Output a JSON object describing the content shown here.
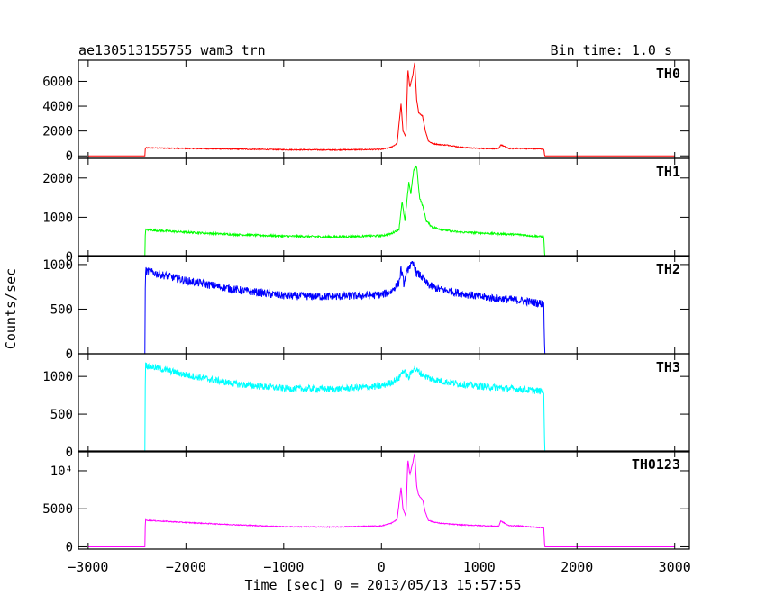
{
  "chart_data": {
    "type": "line",
    "title": "ae130513155755_wam3_trn",
    "subtitle": "Bin time: 1.0 s",
    "xlabel": "Time [sec] 0 = 2013/05/13 15:57:55",
    "ylabel": "Counts/sec",
    "xlim": [
      -3100,
      3150
    ],
    "x_ticks": [
      -3000,
      -2000,
      -1000,
      0,
      1000,
      2000,
      3000
    ],
    "x_tick_labels": [
      "−3000",
      "−2000",
      "−1000",
      "0",
      "1000",
      "2000",
      "3000"
    ],
    "panels": [
      {
        "name": "TH0",
        "color": "#ff0000",
        "ylim": [
          -200,
          7700
        ],
        "y_ticks": [
          0,
          2000,
          4000,
          6000
        ],
        "y_tick_labels": [
          "0",
          "2000",
          "4000",
          "6000"
        ],
        "noise": 40,
        "x": [
          -3000,
          -2420,
          -2415,
          -2000,
          -1500,
          -1000,
          -500,
          0,
          100,
          160,
          200,
          220,
          250,
          270,
          290,
          320,
          340,
          360,
          380,
          420,
          450,
          480,
          520,
          600,
          700,
          800,
          1000,
          1200,
          1220,
          1300,
          1400,
          1500,
          1660,
          1670,
          3000
        ],
        "y": [
          0,
          0,
          650,
          600,
          550,
          500,
          480,
          520,
          700,
          1000,
          4200,
          2000,
          1500,
          7000,
          5500,
          6500,
          7500,
          4500,
          3500,
          3200,
          2000,
          1200,
          1000,
          900,
          850,
          700,
          600,
          580,
          900,
          600,
          600,
          580,
          550,
          0,
          0
        ]
      },
      {
        "name": "TH1",
        "color": "#00ff00",
        "ylim": [
          0,
          2500
        ],
        "y_ticks": [
          0,
          1000,
          2000
        ],
        "y_tick_labels": [
          "0",
          "1000",
          "2000"
        ],
        "noise": 25,
        "x": [
          -3000,
          -2420,
          -2415,
          -2000,
          -1500,
          -1000,
          -500,
          0,
          100,
          180,
          210,
          240,
          280,
          300,
          330,
          360,
          390,
          420,
          460,
          520,
          600,
          700,
          800,
          1000,
          1200,
          1400,
          1660,
          1670,
          3000
        ],
        "y": [
          0,
          0,
          680,
          620,
          560,
          520,
          500,
          530,
          580,
          700,
          1400,
          900,
          1900,
          1600,
          2200,
          2300,
          1500,
          1300,
          900,
          750,
          700,
          650,
          620,
          600,
          580,
          560,
          500,
          0,
          0
        ]
      },
      {
        "name": "TH2",
        "color": "#0000ff",
        "ylim": [
          0,
          1100
        ],
        "y_ticks": [
          0,
          500,
          1000
        ],
        "y_tick_labels": [
          "0",
          "500",
          "1000"
        ],
        "noise": 45,
        "x": [
          -3000,
          -2420,
          -2415,
          -2000,
          -1500,
          -1000,
          -500,
          0,
          100,
          180,
          200,
          230,
          280,
          330,
          360,
          400,
          450,
          500,
          600,
          800,
          1000,
          1200,
          1400,
          1660,
          1670,
          3000
        ],
        "y": [
          0,
          0,
          930,
          820,
          720,
          650,
          640,
          660,
          700,
          800,
          950,
          780,
          980,
          1000,
          900,
          880,
          800,
          760,
          720,
          680,
          640,
          620,
          600,
          560,
          0,
          0
        ]
      },
      {
        "name": "TH3",
        "color": "#00ffff",
        "ylim": [
          0,
          1300
        ],
        "y_ticks": [
          0,
          500,
          1000
        ],
        "y_tick_labels": [
          "0",
          "500",
          "1000"
        ],
        "noise": 45,
        "x": [
          -3000,
          -2420,
          -2415,
          -2000,
          -1500,
          -1000,
          -500,
          0,
          100,
          180,
          220,
          280,
          330,
          360,
          400,
          450,
          500,
          600,
          800,
          1000,
          1200,
          1400,
          1660,
          1670,
          3000
        ],
        "y": [
          0,
          0,
          1150,
          1020,
          900,
          840,
          830,
          870,
          920,
          980,
          1080,
          980,
          1120,
          1080,
          1040,
          1000,
          970,
          940,
          900,
          870,
          850,
          830,
          800,
          0,
          0
        ]
      },
      {
        "name": "TH0123",
        "color": "#ff00ff",
        "ylim": [
          -300,
          12600
        ],
        "y_ticks": [
          0,
          5000,
          10000
        ],
        "y_tick_labels": [
          "0",
          "5000",
          "10⁴"
        ],
        "noise": 60,
        "x": [
          -3000,
          -2420,
          -2415,
          -2000,
          -1500,
          -1000,
          -500,
          0,
          100,
          160,
          200,
          220,
          250,
          270,
          290,
          320,
          340,
          360,
          380,
          420,
          450,
          480,
          520,
          600,
          700,
          800,
          1000,
          1200,
          1220,
          1300,
          1400,
          1500,
          1660,
          1670,
          3000
        ],
        "y": [
          0,
          0,
          3500,
          3200,
          2900,
          2650,
          2600,
          2750,
          3100,
          3600,
          7800,
          5000,
          4000,
          11500,
          9500,
          11000,
          12300,
          8000,
          6800,
          6200,
          4500,
          3500,
          3300,
          3100,
          3000,
          2900,
          2800,
          2700,
          3400,
          2800,
          2750,
          2650,
          2500,
          0,
          0
        ]
      }
    ]
  }
}
